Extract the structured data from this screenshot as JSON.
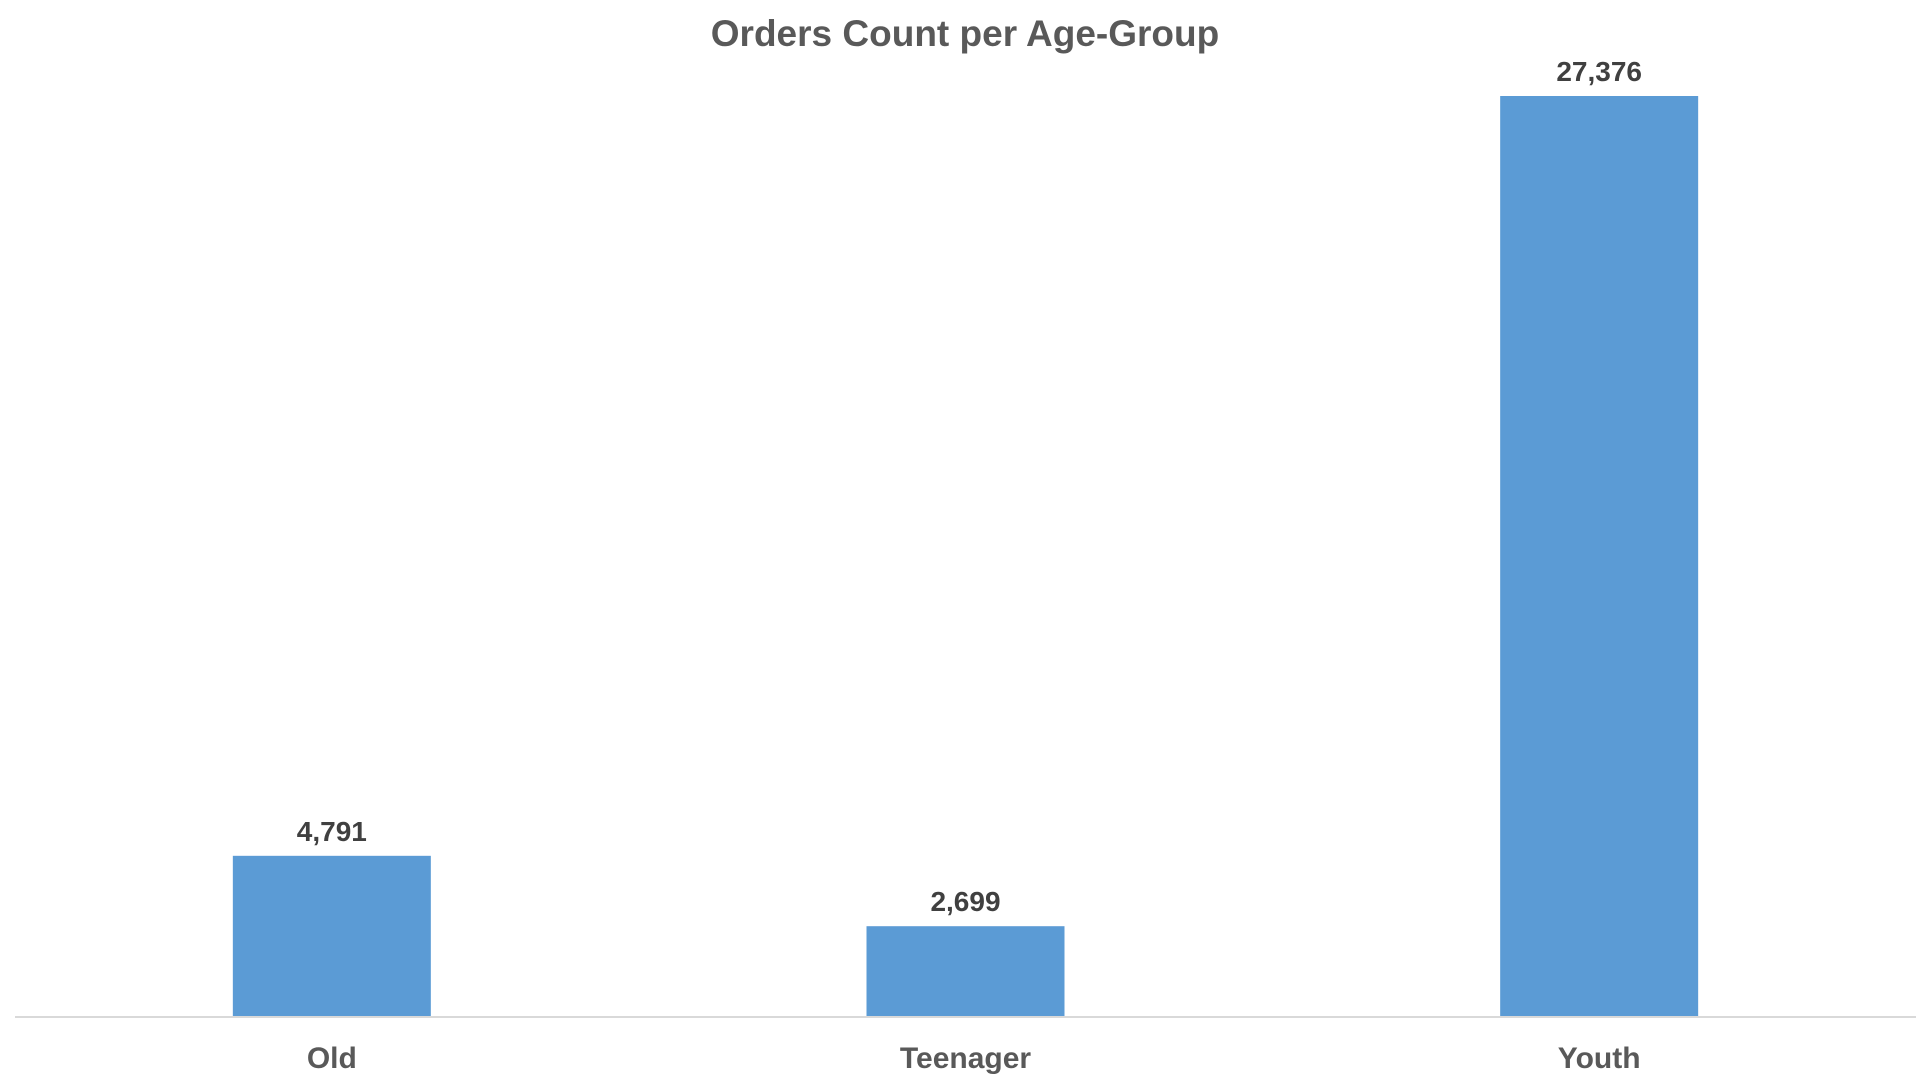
{
  "chart_data": {
    "type": "bar",
    "title": "Orders Count per Age-Group",
    "xlabel": "",
    "ylabel": "",
    "categories": [
      "Old",
      "Teenager",
      "Youth"
    ],
    "values": [
      4791,
      2699,
      27376
    ],
    "value_labels": [
      "4,791",
      "2,699",
      "27,376"
    ],
    "ylim": [
      0,
      27376
    ],
    "grid": false,
    "legend": "none",
    "bar_color": "#5B9BD5",
    "axis_color": "#D9D9D9"
  }
}
